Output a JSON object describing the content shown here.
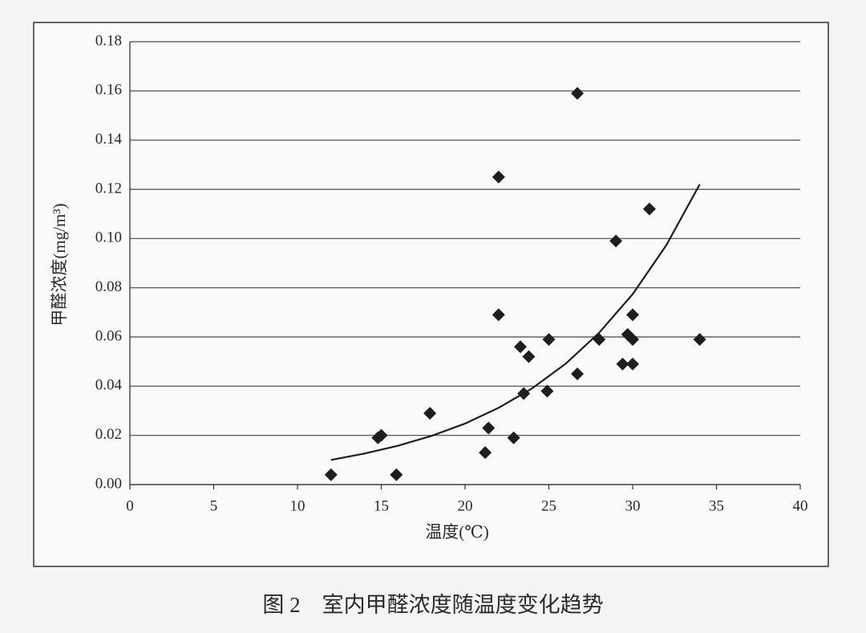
{
  "chart_data": {
    "type": "scatter",
    "title": "图 2　室内甲醛浓度随温度变化趋势",
    "x_label": "温度(℃)",
    "y_label": "甲醛浓度(mg/m³)",
    "xlim": [
      0,
      40
    ],
    "xticks": [
      0,
      5,
      10,
      15,
      20,
      25,
      30,
      35,
      40
    ],
    "ylim": [
      0,
      0.18
    ],
    "yticks": [
      {
        "value": 0,
        "label": "0.00"
      },
      {
        "value": 0.02,
        "label": "0.02"
      },
      {
        "value": 0.04,
        "label": "0.04"
      },
      {
        "value": 0.06,
        "label": "0.06"
      },
      {
        "value": 0.08,
        "label": "0.08"
      },
      {
        "value": 0.1,
        "label": "0.10"
      },
      {
        "value": 0.12,
        "label": "0.12"
      },
      {
        "value": 0.14,
        "label": "0.14"
      },
      {
        "value": 0.16,
        "label": "0.16"
      },
      {
        "value": 0.18,
        "label": "0.18"
      }
    ],
    "grid": true,
    "series": [
      {
        "type": "scatter",
        "color": "#1e1e1e",
        "x": [
          12,
          14.8,
          15,
          15.9,
          17.9,
          21.2,
          21.4,
          22,
          22,
          22.9,
          23.3,
          23.5,
          23.8,
          24.9,
          25,
          26.7,
          26.7,
          28,
          29,
          29.4,
          29.7,
          30,
          30,
          30,
          31,
          34
        ],
        "values": [
          0.004,
          0.019,
          0.02,
          0.004,
          0.029,
          0.013,
          0.023,
          0.125,
          0.069,
          0.019,
          0.056,
          0.037,
          0.052,
          0.038,
          0.059,
          0.045,
          0.159,
          0.059,
          0.099,
          0.049,
          0.061,
          0.059,
          0.069,
          0.049,
          0.112,
          0.059
        ]
      },
      {
        "type": "line",
        "color": "#1e1e1e",
        "x": [
          12,
          14,
          16,
          18,
          20,
          22,
          24,
          26,
          28,
          30,
          32,
          34
        ],
        "values": [
          0.01,
          0.0126,
          0.0158,
          0.0198,
          0.0248,
          0.0312,
          0.0391,
          0.0491,
          0.0617,
          0.0774,
          0.0972,
          0.122
        ]
      }
    ]
  }
}
